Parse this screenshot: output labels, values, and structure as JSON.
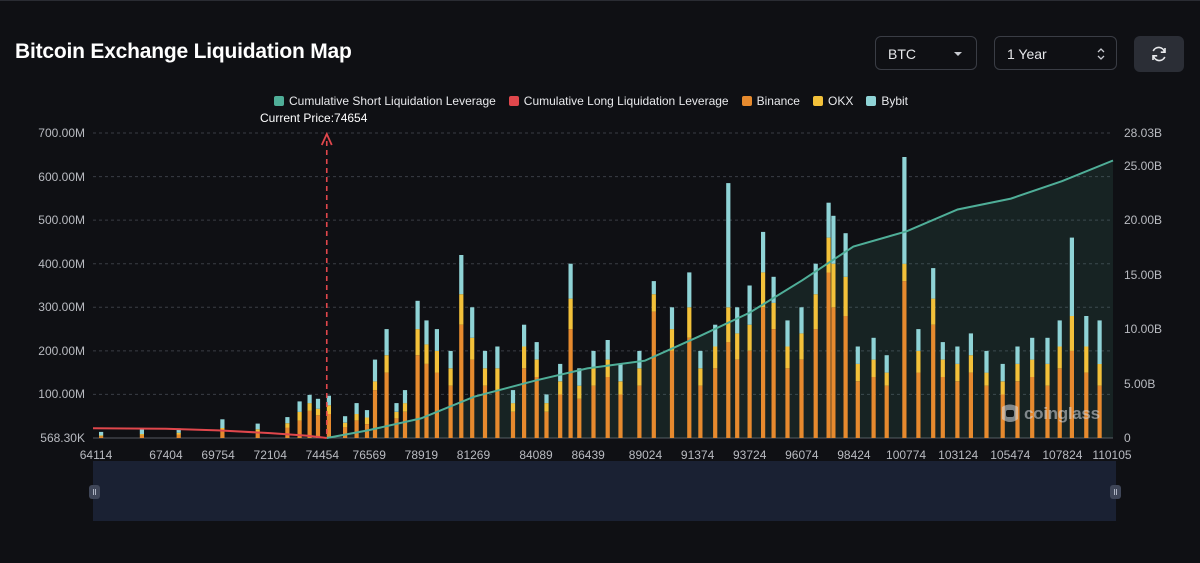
{
  "header": {
    "title": "Bitcoin Exchange Liquidation Map",
    "coin_select": "BTC",
    "range_select": "1 Year",
    "refresh_icon": "refresh-icon"
  },
  "colors": {
    "short_cum": "#4fae98",
    "long_cum": "#e0474c",
    "binance": "#e68a2e",
    "okx": "#f3c13a",
    "bybit": "#8fd3d6",
    "background": "#0f1014",
    "grid": "#3a3d45"
  },
  "watermark": "coinglass",
  "chart_data": {
    "type": "bar",
    "title": "Bitcoin Exchange Liquidation Map",
    "current_price_label": "Current Price:74654",
    "current_price": 74654,
    "x_range": [
      64114,
      110105
    ],
    "x_ticks": [
      "64114",
      "67404",
      "69754",
      "72104",
      "74454",
      "76569",
      "78919",
      "81269",
      "84089",
      "86439",
      "89024",
      "91374",
      "93724",
      "96074",
      "98424",
      "100774",
      "103124",
      "105474",
      "107824",
      "110105"
    ],
    "y_left_ticks": [
      "568.30K",
      "100.00M",
      "200.00M",
      "300.00M",
      "400.00M",
      "500.00M",
      "600.00M",
      "700.00M"
    ],
    "y_left_range": [
      0,
      700000000
    ],
    "y_right_ticks": [
      "0",
      "5.00B",
      "10.00B",
      "15.00B",
      "20.00B",
      "25.00B",
      "28.03B"
    ],
    "y_right_range": [
      0,
      28030000000
    ],
    "legend": [
      {
        "name": "Cumulative Short Liquidation Leverage",
        "color": "#4fae98"
      },
      {
        "name": "Cumulative Long Liquidation Leverage",
        "color": "#e0474c"
      },
      {
        "name": "Binance",
        "color": "#e68a2e"
      },
      {
        "name": "OKX",
        "color": "#f3c13a"
      },
      {
        "name": "Bybit",
        "color": "#8fd3d6"
      }
    ],
    "series_bars": [
      {
        "price": 64480,
        "binance": 4,
        "okx": 2,
        "bybit": 8
      },
      {
        "price": 66320,
        "binance": 6,
        "okx": 3,
        "bybit": 12
      },
      {
        "price": 67980,
        "binance": 8,
        "okx": 4,
        "bybit": 10
      },
      {
        "price": 69950,
        "binance": 16,
        "okx": 7,
        "bybit": 20
      },
      {
        "price": 71540,
        "binance": 14,
        "okx": 6,
        "bybit": 13
      },
      {
        "price": 72880,
        "binance": 24,
        "okx": 10,
        "bybit": 14
      },
      {
        "price": 73430,
        "binance": 40,
        "okx": 20,
        "bybit": 24
      },
      {
        "price": 73880,
        "binance": 62,
        "okx": 18,
        "bybit": 19
      },
      {
        "price": 74260,
        "binance": 52,
        "okx": 15,
        "bybit": 23
      },
      {
        "price": 74750,
        "binance": 55,
        "okx": 20,
        "bybit": 22
      },
      {
        "price": 75480,
        "binance": 25,
        "okx": 10,
        "bybit": 15
      },
      {
        "price": 76000,
        "binance": 40,
        "okx": 15,
        "bybit": 25
      },
      {
        "price": 76470,
        "binance": 32,
        "okx": 15,
        "bybit": 17
      },
      {
        "price": 76830,
        "binance": 110,
        "okx": 20,
        "bybit": 50
      },
      {
        "price": 77350,
        "binance": 150,
        "okx": 40,
        "bybit": 60
      },
      {
        "price": 77800,
        "binance": 45,
        "okx": 15,
        "bybit": 20
      },
      {
        "price": 78180,
        "binance": 60,
        "okx": 20,
        "bybit": 30
      },
      {
        "price": 78750,
        "binance": 190,
        "okx": 60,
        "bybit": 65
      },
      {
        "price": 79150,
        "binance": 170,
        "okx": 45,
        "bybit": 55
      },
      {
        "price": 79620,
        "binance": 150,
        "okx": 50,
        "bybit": 50
      },
      {
        "price": 80240,
        "binance": 120,
        "okx": 40,
        "bybit": 40
      },
      {
        "price": 80720,
        "binance": 260,
        "okx": 70,
        "bybit": 90
      },
      {
        "price": 81210,
        "binance": 180,
        "okx": 50,
        "bybit": 70
      },
      {
        "price": 81790,
        "binance": 120,
        "okx": 40,
        "bybit": 40
      },
      {
        "price": 82350,
        "binance": 110,
        "okx": 50,
        "bybit": 50
      },
      {
        "price": 83050,
        "binance": 60,
        "okx": 20,
        "bybit": 30
      },
      {
        "price": 83550,
        "binance": 160,
        "okx": 50,
        "bybit": 50
      },
      {
        "price": 84120,
        "binance": 140,
        "okx": 40,
        "bybit": 40
      },
      {
        "price": 84560,
        "binance": 60,
        "okx": 20,
        "bybit": 20
      },
      {
        "price": 85180,
        "binance": 100,
        "okx": 30,
        "bybit": 40
      },
      {
        "price": 85650,
        "binance": 250,
        "okx": 70,
        "bybit": 80
      },
      {
        "price": 86040,
        "binance": 90,
        "okx": 30,
        "bybit": 40
      },
      {
        "price": 86680,
        "binance": 120,
        "okx": 40,
        "bybit": 40
      },
      {
        "price": 87320,
        "binance": 140,
        "okx": 40,
        "bybit": 45
      },
      {
        "price": 87900,
        "binance": 100,
        "okx": 30,
        "bybit": 40
      },
      {
        "price": 88750,
        "binance": 120,
        "okx": 40,
        "bybit": 40
      },
      {
        "price": 89400,
        "binance": 290,
        "okx": 40,
        "bybit": 30
      },
      {
        "price": 90220,
        "binance": 200,
        "okx": 50,
        "bybit": 50
      },
      {
        "price": 91000,
        "binance": 230,
        "okx": 70,
        "bybit": 80
      },
      {
        "price": 91500,
        "binance": 120,
        "okx": 40,
        "bybit": 40
      },
      {
        "price": 92170,
        "binance": 160,
        "okx": 50,
        "bybit": 50
      },
      {
        "price": 92760,
        "binance": 220,
        "okx": 80,
        "bybit": 285
      },
      {
        "price": 93160,
        "binance": 180,
        "okx": 60,
        "bybit": 60
      },
      {
        "price": 93720,
        "binance": 200,
        "okx": 60,
        "bybit": 90
      },
      {
        "price": 94330,
        "binance": 300,
        "okx": 80,
        "bybit": 93
      },
      {
        "price": 94800,
        "binance": 250,
        "okx": 60,
        "bybit": 60
      },
      {
        "price": 95430,
        "binance": 160,
        "okx": 50,
        "bybit": 60
      },
      {
        "price": 96060,
        "binance": 180,
        "okx": 60,
        "bybit": 60
      },
      {
        "price": 96700,
        "binance": 250,
        "okx": 80,
        "bybit": 70
      },
      {
        "price": 97280,
        "binance": 380,
        "okx": 80,
        "bybit": 80
      },
      {
        "price": 97500,
        "binance": 300,
        "okx": 100,
        "bybit": 110
      },
      {
        "price": 98050,
        "binance": 280,
        "okx": 90,
        "bybit": 100
      },
      {
        "price": 98600,
        "binance": 130,
        "okx": 40,
        "bybit": 40
      },
      {
        "price": 99310,
        "binance": 140,
        "okx": 40,
        "bybit": 50
      },
      {
        "price": 99900,
        "binance": 120,
        "okx": 30,
        "bybit": 40
      },
      {
        "price": 100700,
        "binance": 360,
        "okx": 40,
        "bybit": 245
      },
      {
        "price": 101330,
        "binance": 150,
        "okx": 50,
        "bybit": 50
      },
      {
        "price": 102000,
        "binance": 260,
        "okx": 60,
        "bybit": 70
      },
      {
        "price": 102430,
        "binance": 140,
        "okx": 40,
        "bybit": 40
      },
      {
        "price": 103090,
        "binance": 130,
        "okx": 40,
        "bybit": 40
      },
      {
        "price": 103700,
        "binance": 150,
        "okx": 40,
        "bybit": 50
      },
      {
        "price": 104400,
        "binance": 120,
        "okx": 30,
        "bybit": 50
      },
      {
        "price": 105130,
        "binance": 100,
        "okx": 30,
        "bybit": 40
      },
      {
        "price": 105800,
        "binance": 130,
        "okx": 40,
        "bybit": 40
      },
      {
        "price": 106460,
        "binance": 140,
        "okx": 40,
        "bybit": 50
      },
      {
        "price": 107150,
        "binance": 120,
        "okx": 50,
        "bybit": 60
      },
      {
        "price": 107700,
        "binance": 160,
        "okx": 50,
        "bybit": 60
      },
      {
        "price": 108250,
        "binance": 200,
        "okx": 80,
        "bybit": 180
      },
      {
        "price": 108900,
        "binance": 150,
        "okx": 60,
        "bybit": 70
      },
      {
        "price": 109500,
        "binance": 120,
        "okx": 50,
        "bybit": 100
      }
    ],
    "cumulative_short": [
      {
        "price": 74654,
        "value": 0
      },
      {
        "price": 76500,
        "value": 0.7
      },
      {
        "price": 78900,
        "value": 1.8
      },
      {
        "price": 81300,
        "value": 3.8
      },
      {
        "price": 84100,
        "value": 5.3
      },
      {
        "price": 86400,
        "value": 6.4
      },
      {
        "price": 89000,
        "value": 7.1
      },
      {
        "price": 91400,
        "value": 9.3
      },
      {
        "price": 93700,
        "value": 11.5
      },
      {
        "price": 96100,
        "value": 14.5
      },
      {
        "price": 98400,
        "value": 17.6
      },
      {
        "price": 100800,
        "value": 19.0
      },
      {
        "price": 103100,
        "value": 21.0
      },
      {
        "price": 105500,
        "value": 22.0
      },
      {
        "price": 107800,
        "value": 23.6
      },
      {
        "price": 110105,
        "value": 25.5
      }
    ],
    "cumulative_long": [
      {
        "price": 64114,
        "value": 0.9
      },
      {
        "price": 67404,
        "value": 0.85
      },
      {
        "price": 69754,
        "value": 0.7
      },
      {
        "price": 72104,
        "value": 0.45
      },
      {
        "price": 73800,
        "value": 0.2
      },
      {
        "price": 74654,
        "value": 0
      }
    ]
  }
}
